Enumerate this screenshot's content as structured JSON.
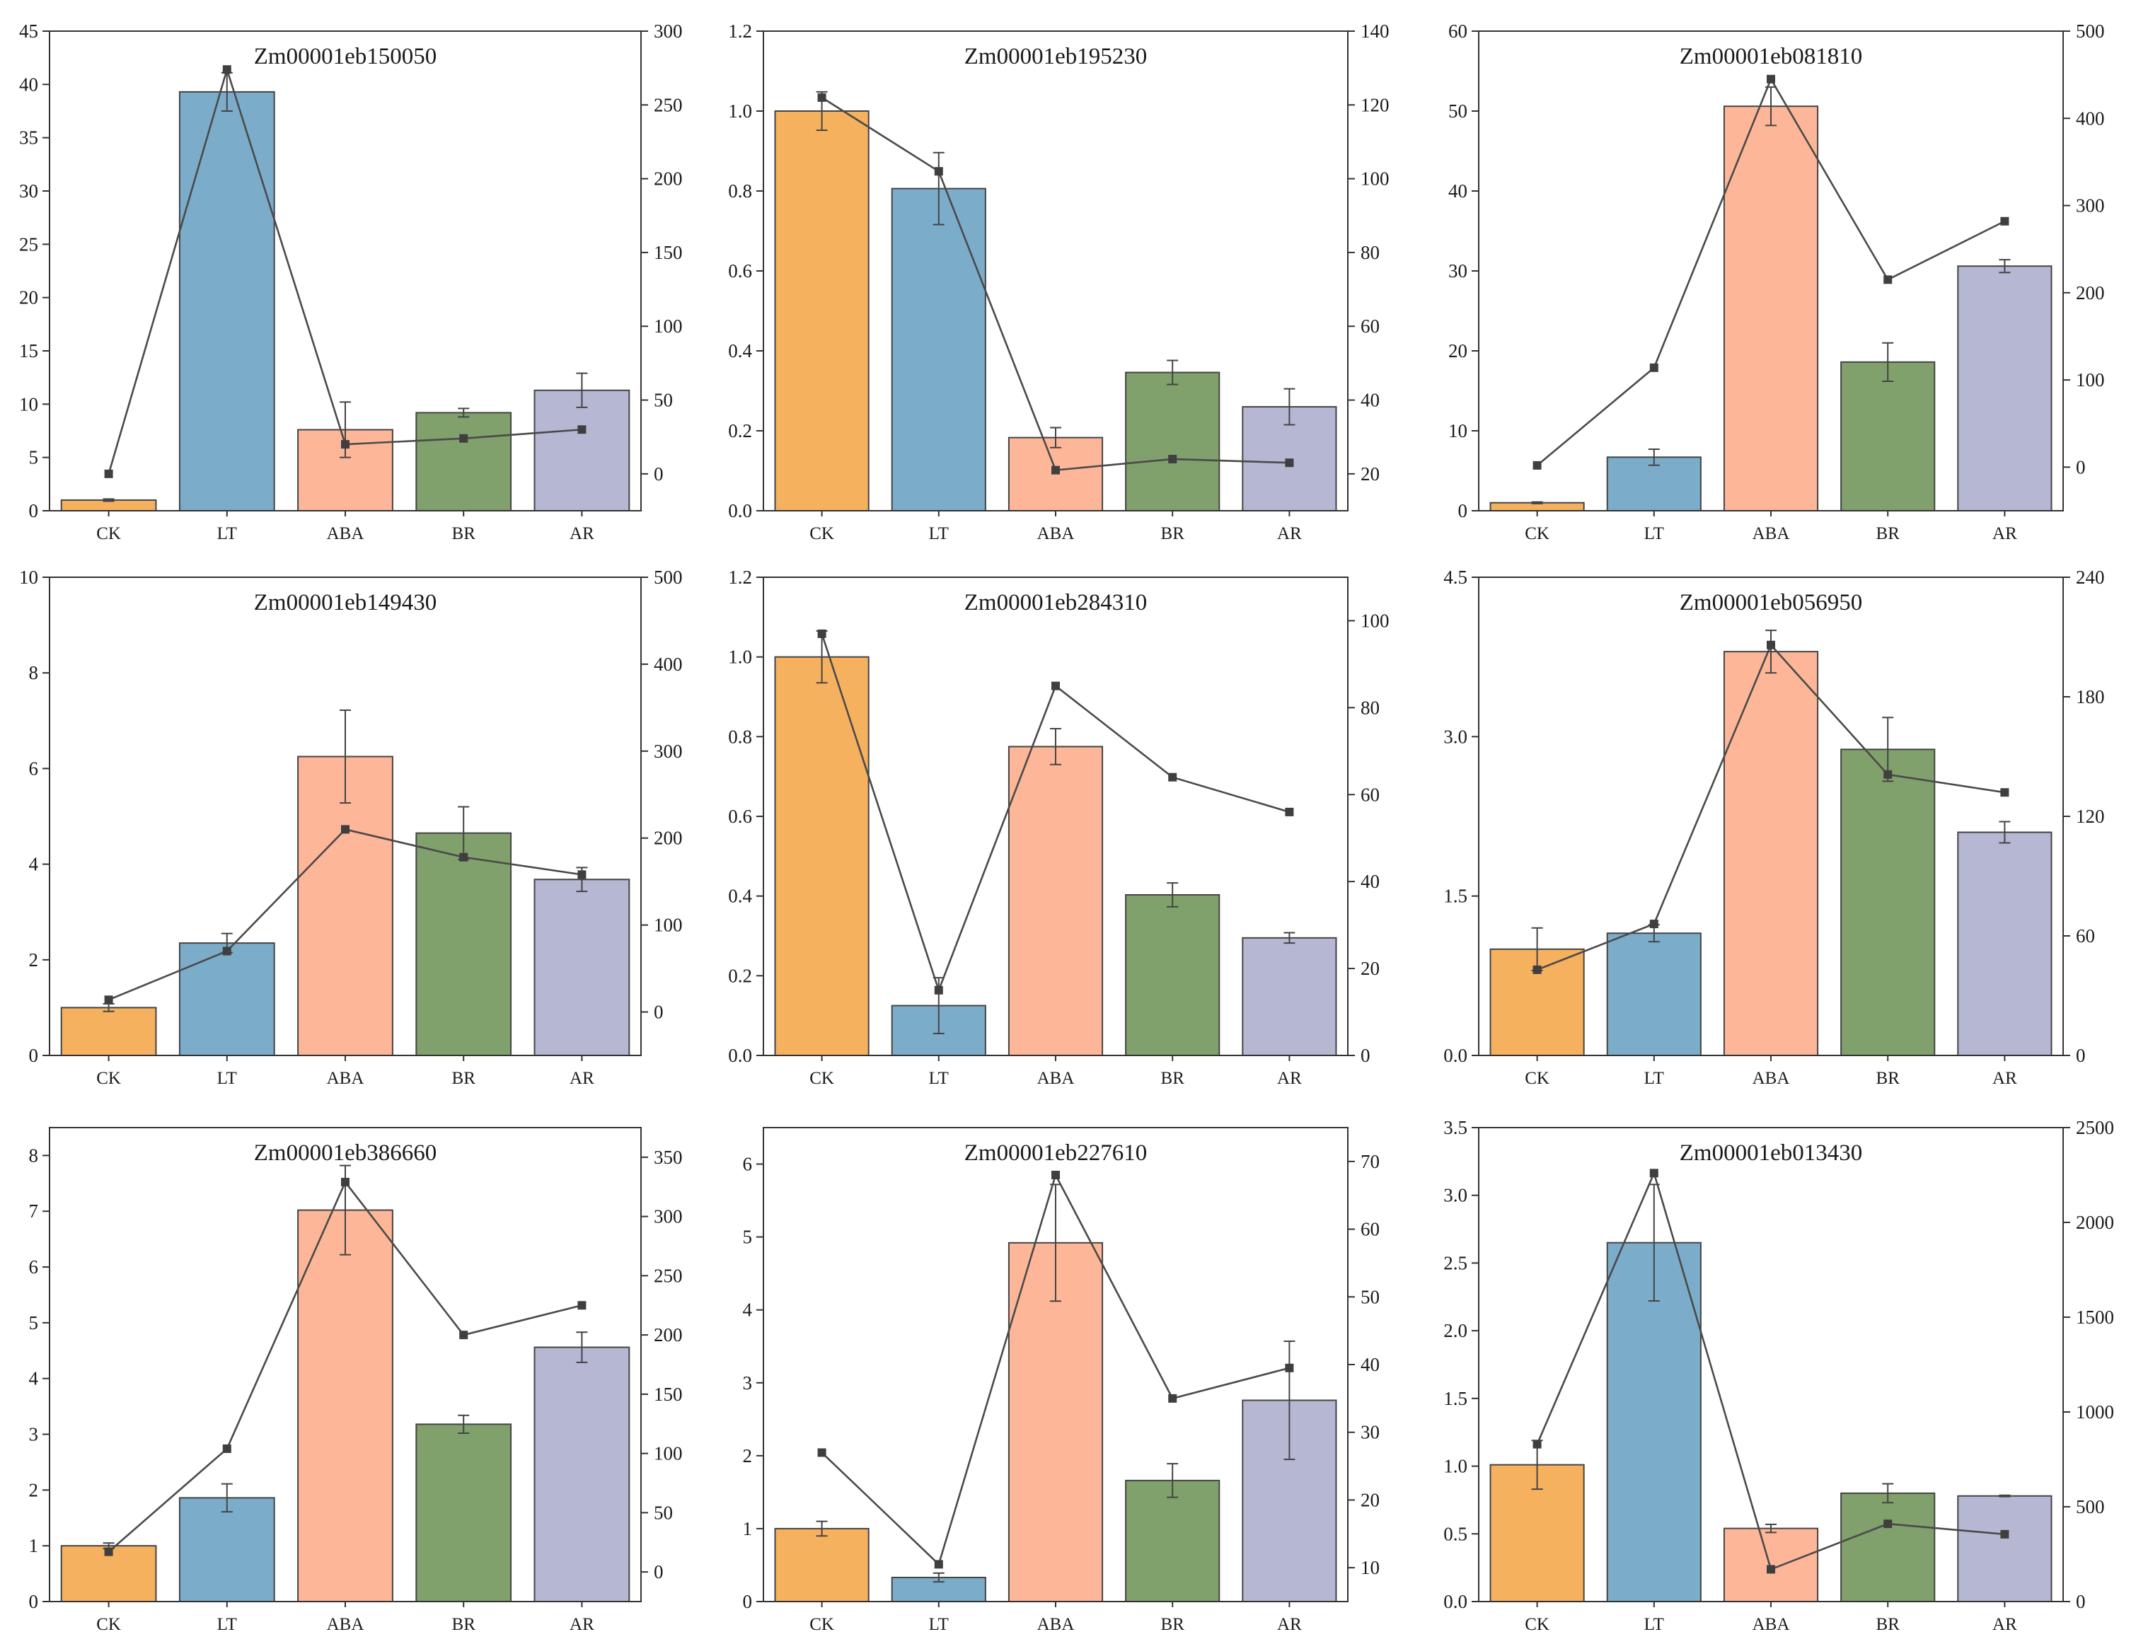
{
  "figure": {
    "categories": [
      "CK",
      "LT",
      "ABA",
      "BR",
      "AR"
    ]
  },
  "colors": [
    "#F6B15F",
    "#7BADCB",
    "#FDB798",
    "#80A06C",
    "#B6B7D3"
  ],
  "chart_data": [
    {
      "type": "bar",
      "title": "Zm00001eb150050",
      "categories": [
        "CK",
        "LT",
        "ABA",
        "BR",
        "AR"
      ],
      "ylim": [
        0,
        45
      ],
      "yticks": [
        0,
        5,
        10,
        15,
        20,
        25,
        30,
        35,
        40,
        45
      ],
      "ytick_labels": [
        "0",
        "5",
        "10",
        "15",
        "20",
        "25",
        "30",
        "35",
        "40",
        "45"
      ],
      "values": [
        1.0,
        39.3,
        7.6,
        9.2,
        11.3
      ],
      "errors": [
        0.1,
        1.8,
        2.6,
        0.4,
        1.6
      ],
      "y2lim": [
        -25,
        300
      ],
      "y2ticks": [
        0,
        50,
        100,
        150,
        200,
        250,
        300
      ],
      "y2tick_labels": [
        "0",
        "50",
        "100",
        "150",
        "200",
        "250",
        "300"
      ],
      "line_values": [
        0,
        274,
        20,
        24,
        30
      ]
    },
    {
      "type": "bar",
      "title": "Zm00001eb195230",
      "categories": [
        "CK",
        "LT",
        "ABA",
        "BR",
        "AR"
      ],
      "ylim": [
        0,
        1.2
      ],
      "yticks": [
        0,
        0.2,
        0.4,
        0.6,
        0.8,
        1.0,
        1.2
      ],
      "ytick_labels": [
        "0.0",
        "0.2",
        "0.4",
        "0.6",
        "0.8",
        "1.0",
        "1.2"
      ],
      "values": [
        1.0,
        0.806,
        0.183,
        0.346,
        0.26
      ],
      "errors": [
        0.048,
        0.09,
        0.025,
        0.03,
        0.045
      ],
      "y2lim": [
        10,
        140
      ],
      "y2ticks": [
        20,
        40,
        60,
        80,
        100,
        120,
        140
      ],
      "y2tick_labels": [
        "20",
        "40",
        "60",
        "80",
        "100",
        "120",
        "140"
      ],
      "line_values": [
        122,
        102,
        21,
        24,
        23
      ]
    },
    {
      "type": "bar",
      "title": "Zm00001eb081810",
      "categories": [
        "CK",
        "LT",
        "ABA",
        "BR",
        "AR"
      ],
      "ylim": [
        0,
        60
      ],
      "yticks": [
        0,
        10,
        20,
        30,
        40,
        50,
        60
      ],
      "ytick_labels": [
        "0",
        "10",
        "20",
        "30",
        "40",
        "50",
        "60"
      ],
      "values": [
        1.0,
        6.7,
        50.6,
        18.6,
        30.6
      ],
      "errors": [
        0.1,
        1.0,
        2.4,
        2.4,
        0.8
      ],
      "y2lim": [
        -50,
        500
      ],
      "y2ticks": [
        0,
        100,
        200,
        300,
        400,
        500
      ],
      "y2tick_labels": [
        "0",
        "100",
        "200",
        "300",
        "400",
        "500"
      ],
      "line_values": [
        2,
        114,
        445,
        215,
        282
      ]
    },
    {
      "type": "bar",
      "title": "Zm00001eb149430",
      "categories": [
        "CK",
        "LT",
        "ABA",
        "BR",
        "AR"
      ],
      "ylim": [
        0,
        10
      ],
      "yticks": [
        0,
        2,
        4,
        6,
        8,
        10
      ],
      "ytick_labels": [
        "0",
        "2",
        "4",
        "6",
        "8",
        "10"
      ],
      "values": [
        1.0,
        2.35,
        6.25,
        4.65,
        3.68
      ],
      "errors": [
        0.08,
        0.2,
        0.97,
        0.55,
        0.25
      ],
      "y2lim": [
        -50,
        500
      ],
      "y2ticks": [
        0,
        100,
        200,
        300,
        400,
        500
      ],
      "y2tick_labels": [
        "0",
        "100",
        "200",
        "300",
        "400",
        "500"
      ],
      "line_values": [
        14,
        70,
        210,
        178,
        158
      ]
    },
    {
      "type": "bar",
      "title": "Zm00001eb284310",
      "categories": [
        "CK",
        "LT",
        "ABA",
        "BR",
        "AR"
      ],
      "ylim": [
        0,
        1.2
      ],
      "yticks": [
        0,
        0.2,
        0.4,
        0.6,
        0.8,
        1.0,
        1.2
      ],
      "ytick_labels": [
        "0.0",
        "0.2",
        "0.4",
        "0.6",
        "0.8",
        "1.0",
        "1.2"
      ],
      "values": [
        1.0,
        0.125,
        0.775,
        0.403,
        0.295
      ],
      "errors": [
        0.065,
        0.07,
        0.045,
        0.03,
        0.013
      ],
      "y2lim": [
        0,
        110
      ],
      "y2ticks": [
        0,
        20,
        40,
        60,
        80,
        100
      ],
      "y2tick_labels": [
        "0",
        "20",
        "40",
        "60",
        "80",
        "100"
      ],
      "line_values": [
        97,
        15,
        85,
        64,
        56
      ]
    },
    {
      "type": "bar",
      "title": "Zm00001eb056950",
      "categories": [
        "CK",
        "LT",
        "ABA",
        "BR",
        "AR"
      ],
      "ylim": [
        0,
        4.5
      ],
      "yticks": [
        0,
        1.5,
        3.0,
        4.5
      ],
      "ytick_labels": [
        "0.0",
        "1.5",
        "3.0",
        "4.5"
      ],
      "values": [
        1.0,
        1.15,
        3.8,
        2.88,
        2.1
      ],
      "errors": [
        0.2,
        0.08,
        0.2,
        0.3,
        0.1
      ],
      "y2lim": [
        0,
        240
      ],
      "y2ticks": [
        0,
        60,
        120,
        180,
        240
      ],
      "y2tick_labels": [
        "0",
        "60",
        "120",
        "180",
        "240"
      ],
      "line_values": [
        43,
        66,
        206,
        141,
        132
      ]
    },
    {
      "type": "bar",
      "title": "Zm00001eb386660",
      "categories": [
        "CK",
        "LT",
        "ABA",
        "BR",
        "AR"
      ],
      "ylim": [
        0,
        8.5
      ],
      "yticks": [
        0,
        1,
        2,
        3,
        4,
        5,
        6,
        7,
        8
      ],
      "ytick_labels": [
        "0",
        "1",
        "2",
        "3",
        "4",
        "5",
        "6",
        "7",
        "8"
      ],
      "values": [
        1.0,
        1.86,
        7.02,
        3.18,
        4.56
      ],
      "errors": [
        0.05,
        0.25,
        0.8,
        0.16,
        0.27
      ],
      "y2lim": [
        -25,
        375
      ],
      "y2ticks": [
        0,
        50,
        100,
        150,
        200,
        250,
        300,
        350
      ],
      "y2tick_labels": [
        "0",
        "50",
        "100",
        "150",
        "200",
        "250",
        "300",
        "350"
      ],
      "line_values": [
        17,
        104,
        329,
        200,
        225
      ]
    },
    {
      "type": "bar",
      "title": "Zm00001eb227610",
      "categories": [
        "CK",
        "LT",
        "ABA",
        "BR",
        "AR"
      ],
      "ylim": [
        0,
        6.5
      ],
      "yticks": [
        0,
        1,
        2,
        3,
        4,
        5,
        6
      ],
      "ytick_labels": [
        "0",
        "1",
        "2",
        "3",
        "4",
        "5",
        "6"
      ],
      "values": [
        1.0,
        0.33,
        4.92,
        1.66,
        2.76
      ],
      "errors": [
        0.1,
        0.06,
        0.8,
        0.23,
        0.81
      ],
      "y2lim": [
        5,
        75
      ],
      "y2ticks": [
        10,
        20,
        30,
        40,
        50,
        60,
        70
      ],
      "y2tick_labels": [
        "10",
        "20",
        "30",
        "40",
        "50",
        "60",
        "70"
      ],
      "line_values": [
        27,
        10.5,
        68,
        35,
        39.5
      ]
    },
    {
      "type": "bar",
      "title": "Zm00001eb013430",
      "categories": [
        "CK",
        "LT",
        "ABA",
        "BR",
        "AR"
      ],
      "ylim": [
        0,
        3.5
      ],
      "yticks": [
        0,
        0.5,
        1.0,
        1.5,
        2.0,
        2.5,
        3.0,
        3.5
      ],
      "ytick_labels": [
        "0.0",
        "0.5",
        "1.0",
        "1.5",
        "2.0",
        "2.5",
        "3.0",
        "3.5"
      ],
      "values": [
        1.01,
        2.65,
        0.54,
        0.8,
        0.78
      ],
      "errors": [
        0.18,
        0.43,
        0.03,
        0.07,
        0.005
      ],
      "y2lim": [
        0,
        2500
      ],
      "y2ticks": [
        0,
        500,
        1000,
        1500,
        2000,
        2500
      ],
      "y2tick_labels": [
        "0",
        "500",
        "1000",
        "1500",
        "2000",
        "2500"
      ],
      "line_values": [
        830,
        2260,
        170,
        410,
        355
      ]
    }
  ]
}
